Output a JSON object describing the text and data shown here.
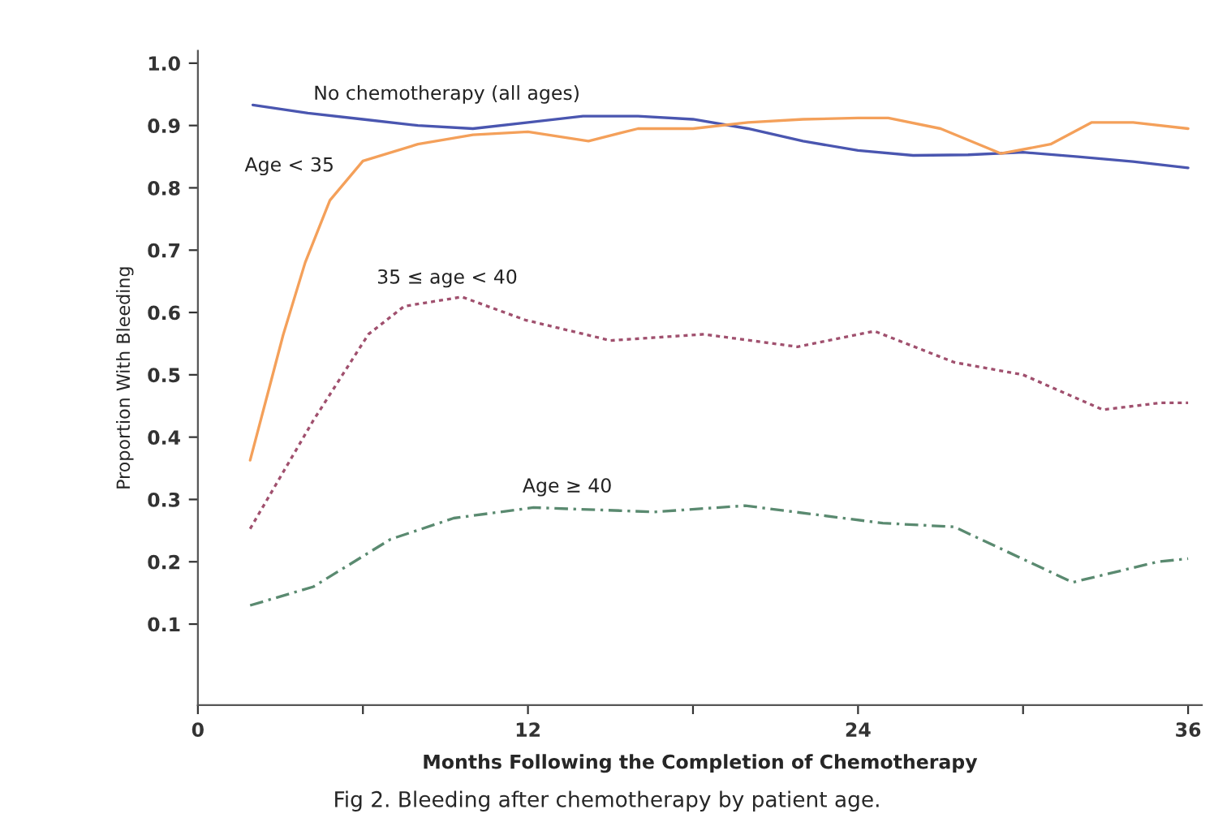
{
  "chart_data": {
    "type": "line",
    "xlabel": "Months Following the Completion of Chemotherapy",
    "ylabel": "Proportion With Bleeding",
    "xlim": [
      0,
      36.5
    ],
    "ylim": [
      -0.03,
      1.02
    ],
    "xticks": [
      0,
      {
        "value": 6,
        "label": null
      },
      12,
      {
        "value": 18,
        "label": null
      },
      24,
      {
        "value": 30,
        "label": null
      },
      36
    ],
    "yticks": [
      0.1,
      0.2,
      0.3,
      0.4,
      0.5,
      0.6,
      0.7,
      0.8,
      0.9,
      {
        "value": 1,
        "label": "1.0"
      }
    ],
    "grid": false,
    "legend": false,
    "marker": "none",
    "series": [
      {
        "name": "No chemotherapy (all ages)",
        "color": "#4a56b0",
        "line_style": "solid",
        "x": [
          2,
          4,
          6,
          8,
          10,
          12,
          14,
          16,
          18,
          20,
          22,
          24,
          26,
          28,
          30,
          32,
          34,
          36
        ],
        "values": [
          0.933,
          0.92,
          0.91,
          0.9,
          0.895,
          0.905,
          0.915,
          0.915,
          0.91,
          0.895,
          0.875,
          0.86,
          0.852,
          0.853,
          0.857,
          0.85,
          0.842,
          0.832
        ]
      },
      {
        "name": "Age < 35",
        "color": "#f4a05a",
        "line_style": "solid",
        "x": [
          1.9,
          2.6,
          3.1,
          3.9,
          4.8,
          6,
          8,
          10,
          12,
          14.2,
          16,
          18,
          20,
          22,
          24,
          25.1,
          27,
          29.2,
          31,
          32.5,
          34,
          36
        ],
        "values": [
          0.363,
          0.48,
          0.564,
          0.68,
          0.78,
          0.843,
          0.87,
          0.885,
          0.89,
          0.875,
          0.895,
          0.895,
          0.905,
          0.91,
          0.912,
          0.912,
          0.895,
          0.855,
          0.87,
          0.905,
          0.905,
          0.895
        ]
      },
      {
        "name": "35 ≤ age < 40",
        "color": "#a0506e",
        "line_style": "dotted",
        "x": [
          1.9,
          4.2,
          6.2,
          7.5,
          9.6,
          11.9,
          15,
          18.4,
          21.8,
          24.6,
          27.5,
          30,
          32.9,
          35,
          36
        ],
        "values": [
          0.253,
          0.427,
          0.565,
          0.61,
          0.625,
          0.588,
          0.555,
          0.565,
          0.545,
          0.57,
          0.52,
          0.5,
          0.444,
          0.455,
          0.455
        ]
      },
      {
        "name": "Age ≥ 40",
        "color": "#5a8a70",
        "line_style": "dashed",
        "x": [
          1.9,
          4.2,
          7,
          9.3,
          12.2,
          16.6,
          19.9,
          24.9,
          27.5,
          31.8,
          34.9,
          36
        ],
        "values": [
          0.13,
          0.16,
          0.236,
          0.27,
          0.287,
          0.28,
          0.29,
          0.262,
          0.256,
          0.167,
          0.2,
          0.205
        ]
      }
    ],
    "annotations": [
      "Fig 2. Bleeding after chemotherapy by patient age."
    ]
  }
}
